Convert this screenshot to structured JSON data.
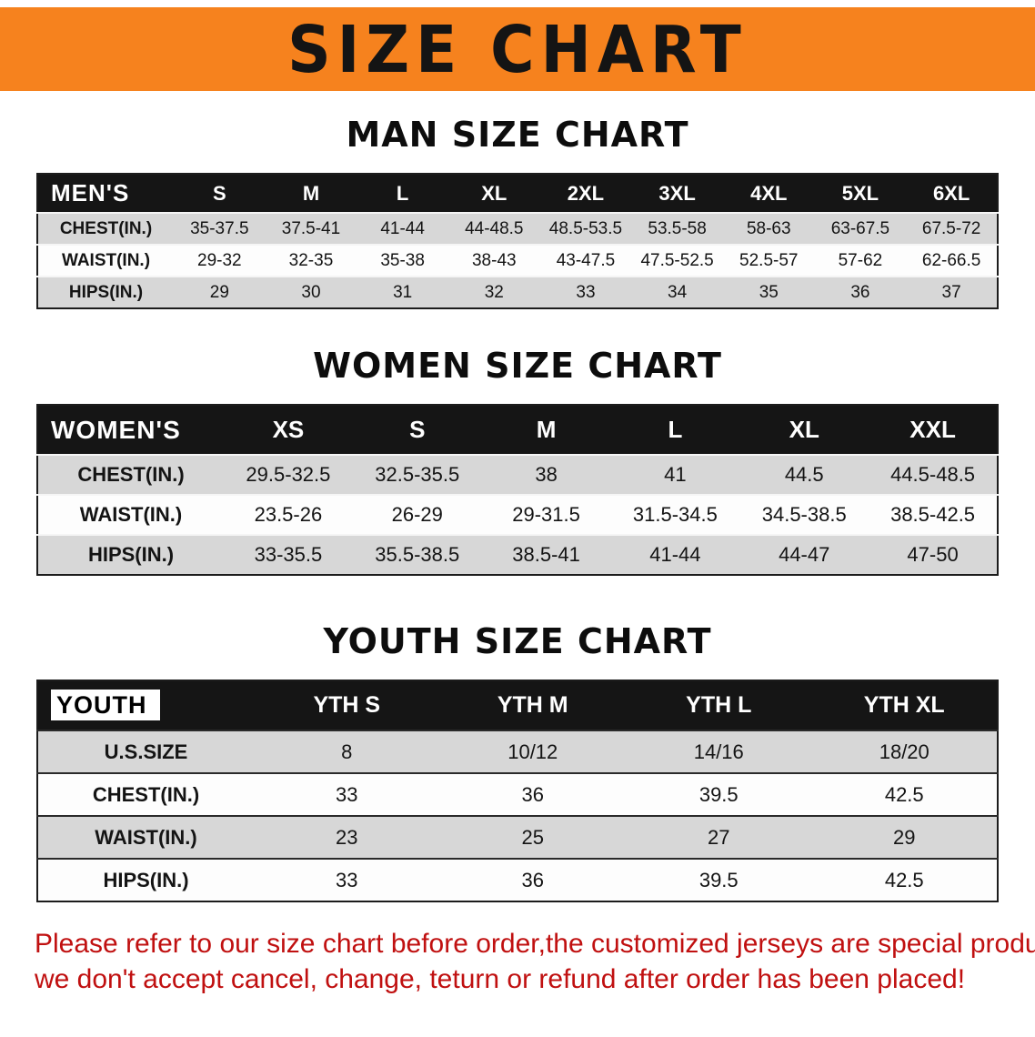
{
  "banner": {
    "title": "SIZE CHART",
    "background_color": "#f6821e"
  },
  "men": {
    "heading": "MAN SIZE CHART",
    "table": {
      "header_label": "MEN'S",
      "columns": [
        "S",
        "M",
        "L",
        "XL",
        "2XL",
        "3XL",
        "4XL",
        "5XL",
        "6XL"
      ],
      "rows": [
        {
          "label": "CHEST(IN.)",
          "values": [
            "35-37.5",
            "37.5-41",
            "41-44",
            "44-48.5",
            "48.5-53.5",
            "53.5-58",
            "58-63",
            "63-67.5",
            "67.5-72"
          ]
        },
        {
          "label": "WAIST(IN.)",
          "values": [
            "29-32",
            "32-35",
            "35-38",
            "38-43",
            "43-47.5",
            "47.5-52.5",
            "52.5-57",
            "57-62",
            "62-66.5"
          ]
        },
        {
          "label": "HIPS(IN.)",
          "values": [
            "29",
            "30",
            "31",
            "32",
            "33",
            "34",
            "35",
            "36",
            "37"
          ]
        }
      ]
    }
  },
  "women": {
    "heading": "WOMEN SIZE CHART",
    "table": {
      "header_label": "WOMEN'S",
      "columns": [
        "XS",
        "S",
        "M",
        "L",
        "XL",
        "XXL"
      ],
      "rows": [
        {
          "label": "CHEST(IN.)",
          "values": [
            "29.5-32.5",
            "32.5-35.5",
            "38",
            "41",
            "44.5",
            "44.5-48.5"
          ]
        },
        {
          "label": "WAIST(IN.)",
          "values": [
            "23.5-26",
            "26-29",
            "29-31.5",
            "31.5-34.5",
            "34.5-38.5",
            "38.5-42.5"
          ]
        },
        {
          "label": "HIPS(IN.)",
          "values": [
            "33-35.5",
            "35.5-38.5",
            "38.5-41",
            "41-44",
            "44-47",
            "47-50"
          ]
        }
      ]
    }
  },
  "youth": {
    "heading": "YOUTH SIZE CHART",
    "table": {
      "header_label": "YOUTH",
      "columns": [
        "YTH S",
        "YTH M",
        "YTH L",
        "YTH XL"
      ],
      "rows": [
        {
          "label": "U.S.SIZE",
          "values": [
            "8",
            "10/12",
            "14/16",
            "18/20"
          ]
        },
        {
          "label": "CHEST(IN.)",
          "values": [
            "33",
            "36",
            "39.5",
            "42.5"
          ]
        },
        {
          "label": "WAIST(IN.)",
          "values": [
            "23",
            "25",
            "27",
            "29"
          ]
        },
        {
          "label": "HIPS(IN.)",
          "values": [
            "33",
            "36",
            "39.5",
            "42.5"
          ]
        }
      ]
    }
  },
  "disclaimer": {
    "line1": "Please refer to our size chart before order,the customized jerseys are special products,",
    "line2": "we don't accept cancel, change, teturn or refund after order has been placed!"
  }
}
